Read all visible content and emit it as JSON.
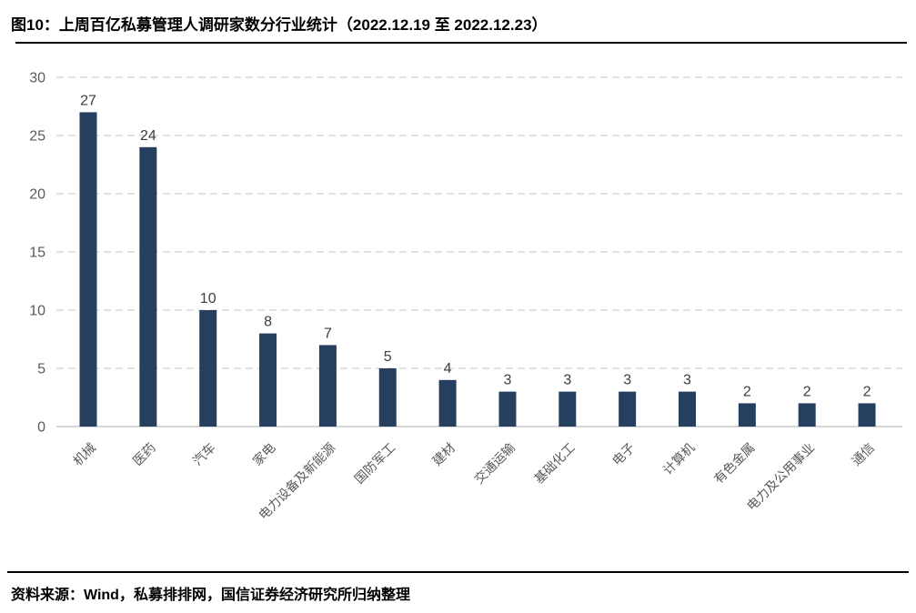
{
  "figure": {
    "title": "图10：上周百亿私募管理人调研家数分行业统计（2022.12.19 至 2022.12.23）",
    "source_note": "资料来源：Wind，私募排排网，国信证券经济研究所归纳整理"
  },
  "chart_data": {
    "type": "bar",
    "title": "上周百亿私募管理人调研家数分行业统计（2022.12.19 至 2022.12.23）",
    "categories": [
      "机械",
      "医药",
      "汽车",
      "家电",
      "电力设备及新能源",
      "国防军工",
      "建材",
      "交通运输",
      "基础化工",
      "电子",
      "计算机",
      "有色金属",
      "电力及公用事业",
      "通信"
    ],
    "values": [
      27,
      24,
      10,
      8,
      7,
      5,
      4,
      3,
      3,
      3,
      3,
      2,
      2,
      2
    ],
    "xlabel": "",
    "ylabel": "",
    "ylim": [
      0,
      30
    ],
    "yticks": [
      0,
      5,
      10,
      15,
      20,
      25,
      30
    ],
    "grid": "dashed-horizontal",
    "legend": "none",
    "data_labels": true,
    "x_label_rotation": 45,
    "colors": {
      "bar": "#273F5E",
      "grid": "#D9D9D9",
      "axis_line": "#C8C8C8",
      "tick_label": "#595959",
      "data_label": "#3D3D3D",
      "background": "#FFFFFF"
    }
  }
}
